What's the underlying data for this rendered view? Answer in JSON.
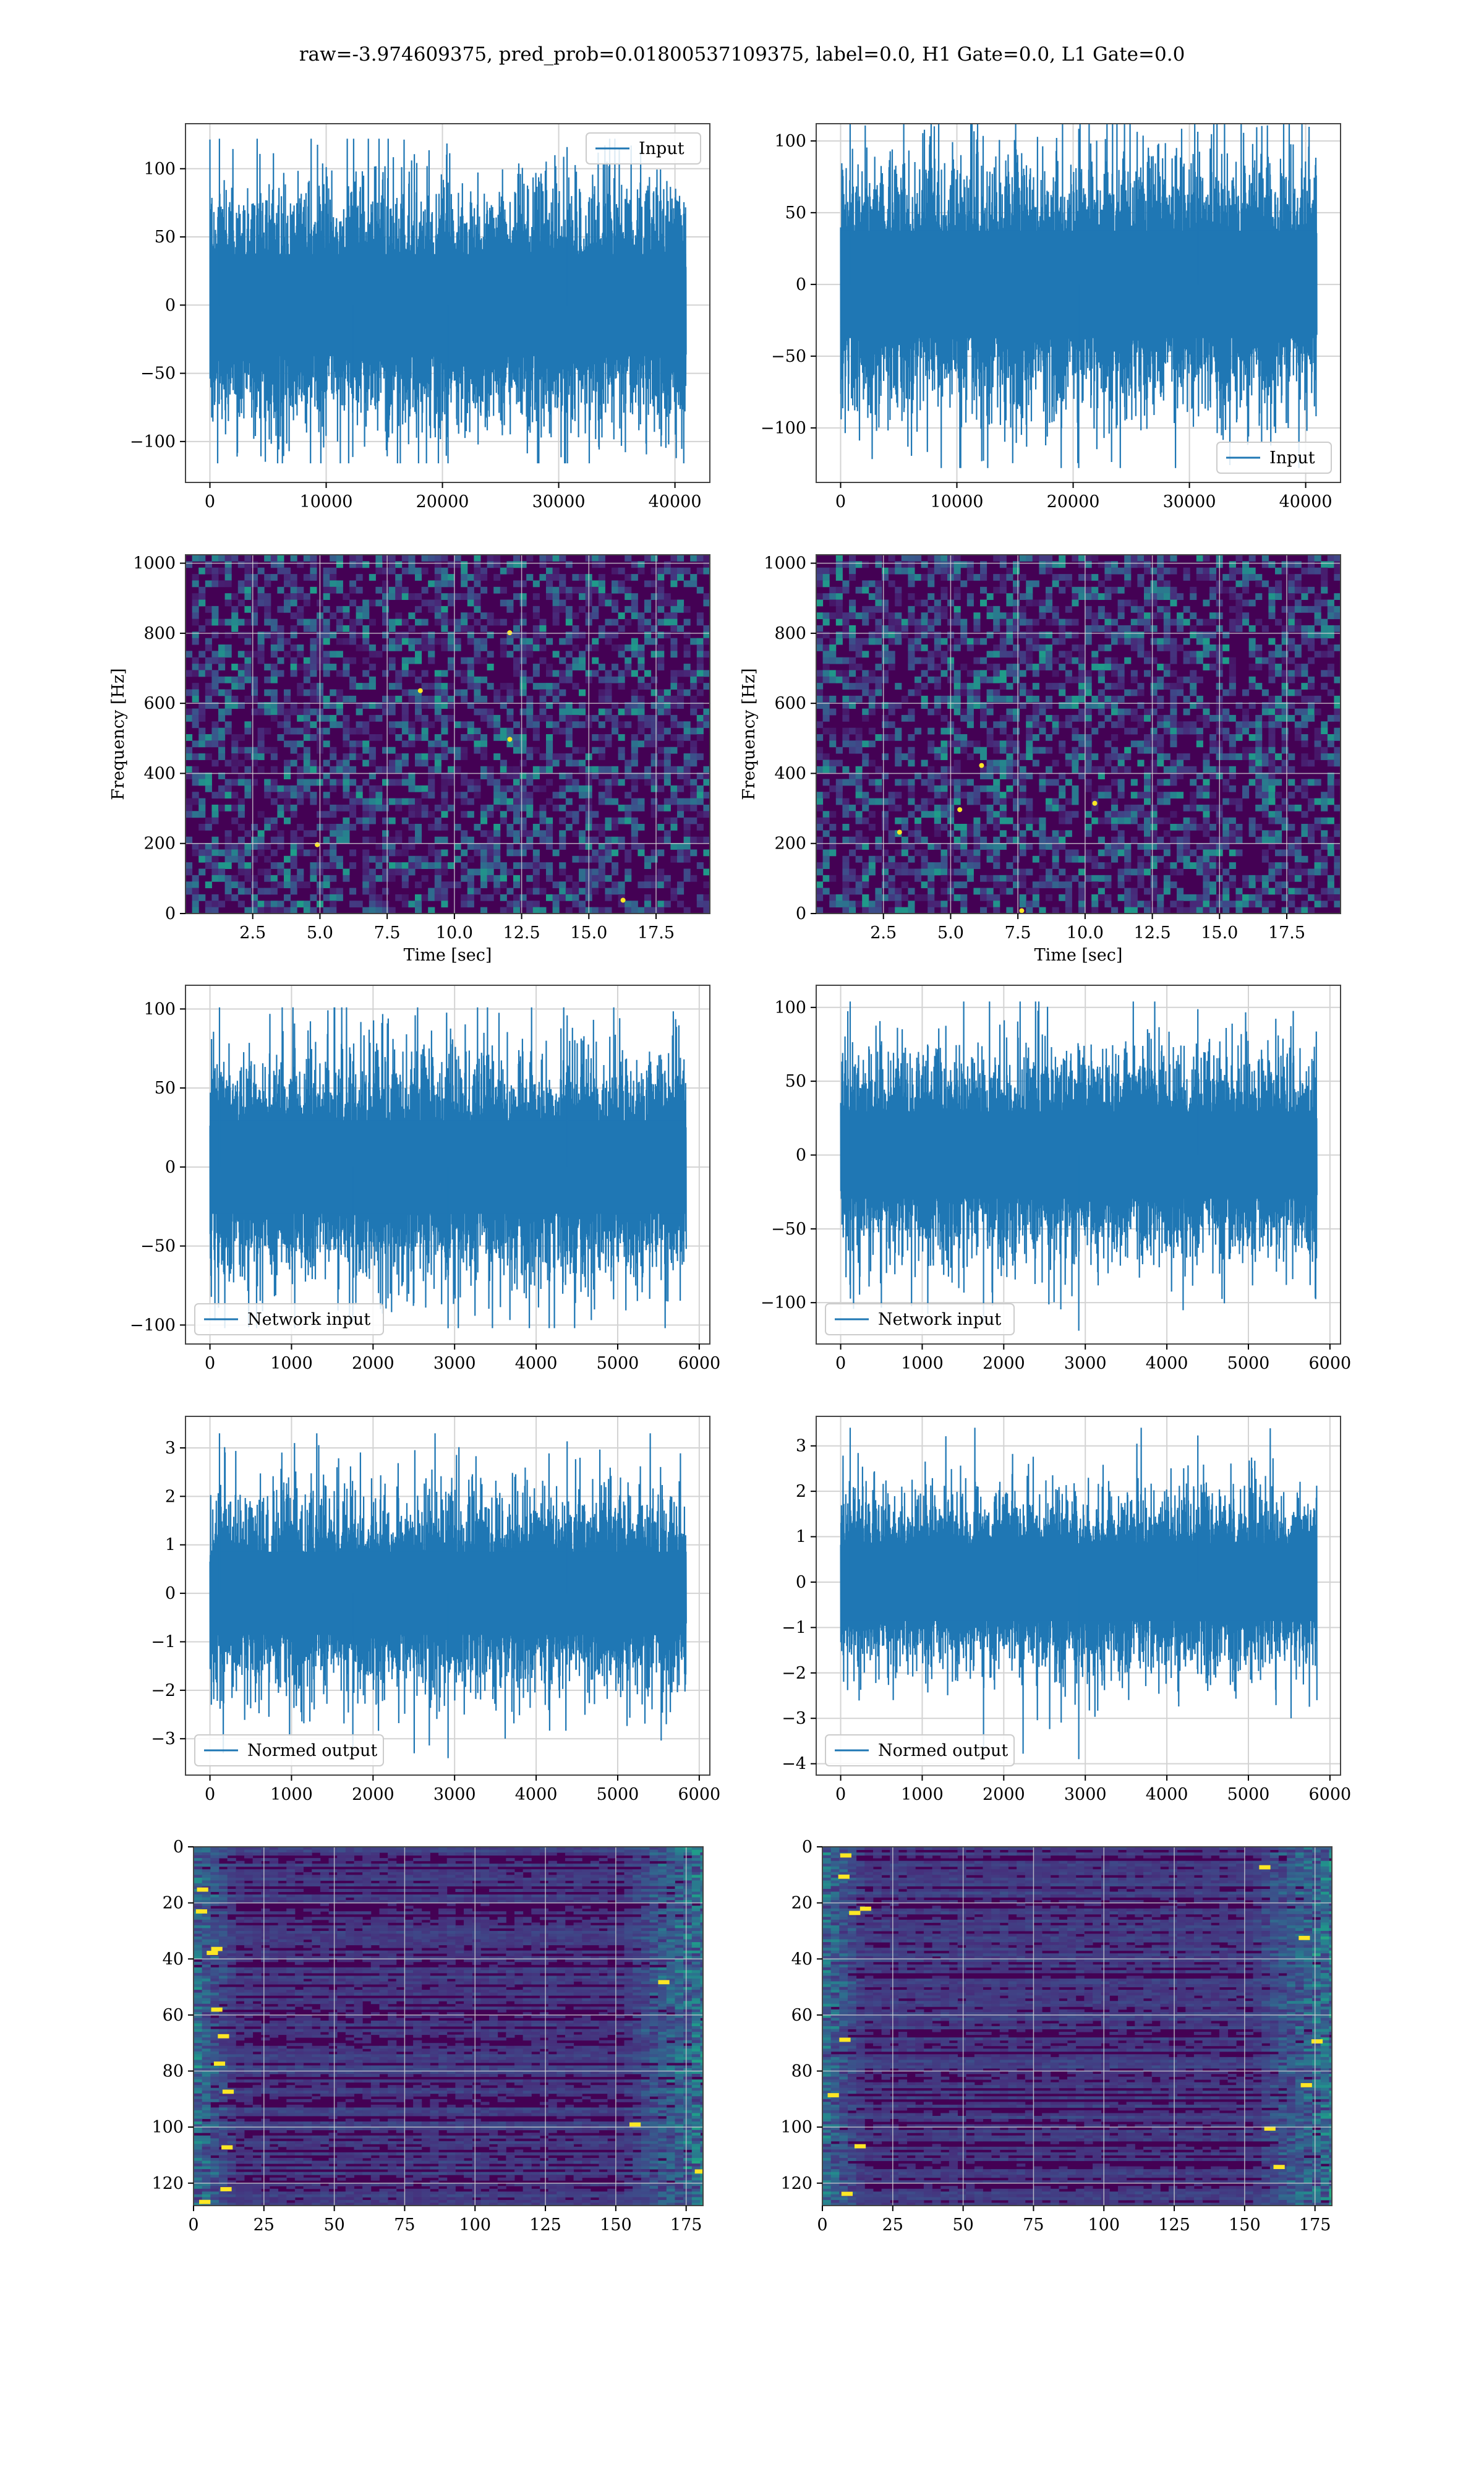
{
  "suptitle": "raw=-3.974609375, pred_prob=0.01800537109375, label=0.0, H1 Gate=0.0, L1 Gate=0.0",
  "colors": {
    "line": "#1f77b4",
    "grid": "#d3d3d3",
    "viridis_dark": "#440154",
    "viridis_mid": "#21918c",
    "viridis_bright": "#fde725"
  },
  "chart_data": [
    {
      "id": "h1-input",
      "type": "line",
      "legend_loc": "upper-right",
      "grid": true,
      "series": [
        {
          "name": "Input",
          "n_samples": 40960,
          "x_range": [
            0,
            40960
          ],
          "typical_amplitude": 48,
          "max": 122,
          "min": -116
        }
      ],
      "xlim": [
        -2100,
        43000
      ],
      "ylim": [
        -130,
        133
      ],
      "xticks": [
        0,
        10000,
        20000,
        30000,
        40000
      ],
      "xtick_labels": [
        "0",
        "10000",
        "20000",
        "30000",
        "40000"
      ],
      "yticks": [
        100,
        50,
        0,
        -50,
        -100
      ],
      "ytick_labels": [
        "100",
        "50",
        "0",
        "−50",
        "−100"
      ],
      "xlabel": "",
      "ylabel": ""
    },
    {
      "id": "l1-input",
      "type": "line",
      "legend_loc": "lower-right",
      "grid": true,
      "series": [
        {
          "name": "Input",
          "n_samples": 40960,
          "x_range": [
            0,
            40960
          ],
          "typical_amplitude": 48,
          "max": 112,
          "min": -128
        }
      ],
      "xlim": [
        -2100,
        43000
      ],
      "ylim": [
        -138,
        112
      ],
      "xticks": [
        0,
        10000,
        20000,
        30000,
        40000
      ],
      "xtick_labels": [
        "0",
        "10000",
        "20000",
        "30000",
        "40000"
      ],
      "yticks": [
        100,
        50,
        0,
        -50,
        -100
      ],
      "ytick_labels": [
        "100",
        "50",
        "0",
        "−50",
        "−100"
      ],
      "xlabel": "",
      "ylabel": ""
    },
    {
      "id": "h1-spectrogram",
      "type": "heatmap",
      "grid": true,
      "colormap": "viridis",
      "xlim": [
        0,
        19.5
      ],
      "ylim": [
        0,
        1024
      ],
      "xticks": [
        2.5,
        5,
        7.5,
        10,
        12.5,
        15,
        17.5
      ],
      "xtick_labels": [
        "2.5",
        "5.0",
        "7.5",
        "10.0",
        "12.5",
        "15.0",
        "17.5"
      ],
      "yticks": [
        0,
        200,
        400,
        600,
        800,
        1000
      ],
      "ytick_labels": [
        "0",
        "200",
        "400",
        "600",
        "800",
        "1000"
      ],
      "xlabel": "Time [sec]",
      "ylabel": "Frequency [Hz]"
    },
    {
      "id": "l1-spectrogram",
      "type": "heatmap",
      "grid": true,
      "colormap": "viridis",
      "xlim": [
        0,
        19.5
      ],
      "ylim": [
        0,
        1024
      ],
      "xticks": [
        2.5,
        5,
        7.5,
        10,
        12.5,
        15,
        17.5
      ],
      "xtick_labels": [
        "2.5",
        "5.0",
        "7.5",
        "10.0",
        "12.5",
        "15.0",
        "17.5"
      ],
      "yticks": [
        0,
        200,
        400,
        600,
        800,
        1000
      ],
      "ytick_labels": [
        "0",
        "200",
        "400",
        "600",
        "800",
        "1000"
      ],
      "xlabel": "Time [sec]",
      "ylabel": "Frequency [Hz]"
    },
    {
      "id": "h1-network-input",
      "type": "line",
      "legend_loc": "lower-left",
      "grid": true,
      "series": [
        {
          "name": "Network input",
          "n_samples": 5840,
          "x_range": [
            0,
            5840
          ],
          "typical_amplitude": 38,
          "max": 101,
          "min": -102
        }
      ],
      "xlim": [
        -300,
        6130
      ],
      "ylim": [
        -112,
        115
      ],
      "xticks": [
        0,
        1000,
        2000,
        3000,
        4000,
        5000,
        6000
      ],
      "xtick_labels": [
        "0",
        "1000",
        "2000",
        "3000",
        "4000",
        "5000",
        "6000"
      ],
      "yticks": [
        100,
        50,
        0,
        -50,
        -100
      ],
      "ytick_labels": [
        "100",
        "50",
        "0",
        "−50",
        "−100"
      ],
      "xlabel": "",
      "ylabel": ""
    },
    {
      "id": "l1-network-input",
      "type": "line",
      "legend_loc": "lower-left",
      "grid": true,
      "series": [
        {
          "name": "Network input",
          "n_samples": 5840,
          "x_range": [
            0,
            5840
          ],
          "typical_amplitude": 38,
          "max": 104,
          "min": -119
        }
      ],
      "xlim": [
        -300,
        6130
      ],
      "ylim": [
        -128,
        115
      ],
      "xticks": [
        0,
        1000,
        2000,
        3000,
        4000,
        5000,
        6000
      ],
      "xtick_labels": [
        "0",
        "1000",
        "2000",
        "3000",
        "4000",
        "5000",
        "6000"
      ],
      "yticks": [
        100,
        50,
        0,
        -50,
        -100
      ],
      "ytick_labels": [
        "100",
        "50",
        "0",
        "−50",
        "−100"
      ],
      "xlabel": "",
      "ylabel": ""
    },
    {
      "id": "h1-normed-output",
      "type": "line",
      "legend_loc": "lower-left",
      "grid": true,
      "series": [
        {
          "name": "Normed output",
          "n_samples": 5840,
          "x_range": [
            0,
            5840
          ],
          "typical_amplitude": 1.1,
          "max": 3.3,
          "min": -3.4
        }
      ],
      "xlim": [
        -300,
        6130
      ],
      "ylim": [
        -3.75,
        3.65
      ],
      "xticks": [
        0,
        1000,
        2000,
        3000,
        4000,
        5000,
        6000
      ],
      "xtick_labels": [
        "0",
        "1000",
        "2000",
        "3000",
        "4000",
        "5000",
        "6000"
      ],
      "yticks": [
        3,
        2,
        1,
        0,
        -1,
        -2,
        -3
      ],
      "ytick_labels": [
        "3",
        "2",
        "1",
        "0",
        "−1",
        "−2",
        "−3"
      ],
      "xlabel": "",
      "ylabel": ""
    },
    {
      "id": "l1-normed-output",
      "type": "line",
      "legend_loc": "lower-left",
      "grid": true,
      "series": [
        {
          "name": "Normed output",
          "n_samples": 5840,
          "x_range": [
            0,
            5840
          ],
          "typical_amplitude": 1.1,
          "max": 3.4,
          "min": -3.9
        }
      ],
      "xlim": [
        -300,
        6130
      ],
      "ylim": [
        -4.25,
        3.65
      ],
      "xticks": [
        0,
        1000,
        2000,
        3000,
        4000,
        5000,
        6000
      ],
      "xtick_labels": [
        "0",
        "1000",
        "2000",
        "3000",
        "4000",
        "5000",
        "6000"
      ],
      "yticks": [
        3,
        2,
        1,
        0,
        -1,
        -2,
        -3,
        -4
      ],
      "ytick_labels": [
        "3",
        "2",
        "1",
        "0",
        "−1",
        "−2",
        "−3",
        "−4"
      ],
      "xlabel": "",
      "ylabel": ""
    },
    {
      "id": "h1-feature-map",
      "type": "heatmap",
      "grid": true,
      "colormap": "viridis",
      "rows": 128,
      "cols": 181,
      "xlim": [
        0,
        181
      ],
      "ylim": [
        128,
        0
      ],
      "xticks": [
        0,
        25,
        50,
        75,
        100,
        125,
        150,
        175
      ],
      "xtick_labels": [
        "0",
        "25",
        "50",
        "75",
        "100",
        "125",
        "150",
        "175"
      ],
      "yticks": [
        0,
        20,
        40,
        60,
        80,
        100,
        120
      ],
      "ytick_labels": [
        "0",
        "20",
        "40",
        "60",
        "80",
        "100",
        "120"
      ],
      "xlabel": "",
      "ylabel": ""
    },
    {
      "id": "l1-feature-map",
      "type": "heatmap",
      "grid": true,
      "colormap": "viridis",
      "rows": 128,
      "cols": 181,
      "xlim": [
        0,
        181
      ],
      "ylim": [
        128,
        0
      ],
      "xticks": [
        0,
        25,
        50,
        75,
        100,
        125,
        150,
        175
      ],
      "xtick_labels": [
        "0",
        "25",
        "50",
        "75",
        "100",
        "125",
        "150",
        "175"
      ],
      "yticks": [
        0,
        20,
        40,
        60,
        80,
        100,
        120
      ],
      "ytick_labels": [
        "0",
        "20",
        "40",
        "60",
        "80",
        "100",
        "120"
      ],
      "xlabel": "",
      "ylabel": ""
    }
  ]
}
